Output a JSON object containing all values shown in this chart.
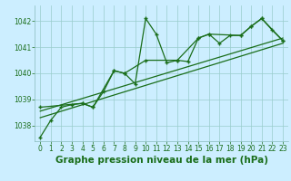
{
  "xlabel": "Graphe pression niveau de la mer (hPa)",
  "bg_color": "#cceeff",
  "grid_color": "#99cccc",
  "line_color": "#1a6e1a",
  "spine_color": "#88bbbb",
  "x_ticks": [
    0,
    1,
    2,
    3,
    4,
    5,
    6,
    7,
    8,
    9,
    10,
    11,
    12,
    13,
    14,
    15,
    16,
    17,
    18,
    19,
    20,
    21,
    22,
    23
  ],
  "y_ticks": [
    1038,
    1039,
    1040,
    1041,
    1042
  ],
  "ylim": [
    1037.4,
    1042.6
  ],
  "xlim": [
    -0.5,
    23.5
  ],
  "series1_x": [
    0,
    1,
    2,
    3,
    4,
    5,
    6,
    7,
    8,
    9,
    10,
    11,
    12,
    13,
    14,
    15,
    16,
    17,
    18,
    19,
    20,
    21,
    22,
    23
  ],
  "series1_y": [
    1037.55,
    1038.2,
    1038.7,
    1038.8,
    1038.85,
    1038.7,
    1039.3,
    1040.1,
    1040.0,
    1039.6,
    1042.1,
    1041.5,
    1040.4,
    1040.5,
    1040.45,
    1041.35,
    1041.5,
    1041.15,
    1041.45,
    1041.45,
    1041.8,
    1042.1,
    1041.65,
    1041.25
  ],
  "series2_x": [
    0,
    4,
    5,
    7,
    8,
    10,
    13,
    15,
    16,
    19,
    20,
    21,
    23
  ],
  "series2_y": [
    1038.7,
    1038.85,
    1038.7,
    1040.1,
    1040.0,
    1040.5,
    1040.5,
    1041.35,
    1041.5,
    1041.45,
    1041.8,
    1042.1,
    1041.25
  ],
  "series3_x": [
    0,
    23
  ],
  "series3_y": [
    1038.3,
    1041.15
  ],
  "series4_x": [
    0,
    23
  ],
  "series4_y": [
    1038.55,
    1041.35
  ],
  "tick_fontsize": 5.5,
  "xlabel_fontsize": 7.5
}
